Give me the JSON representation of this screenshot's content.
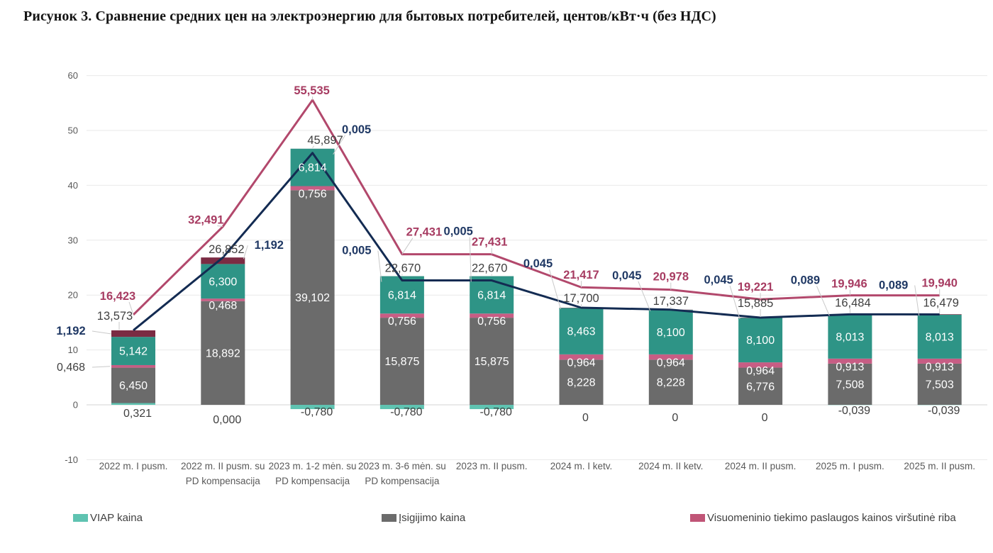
{
  "title": "Рисунок 3. Сравнение средних цен на электроэнергию для бытовых потребителей, центов/кВт·ч (без НДС)",
  "chart_data": {
    "type": "bar",
    "subtype": "stacked-bar-with-lines",
    "title": "Рисунок 3. Сравнение средних цен на электроэнергию для бытовых потребителей, центов/кВт·ч (без НДС)",
    "y_axis": {
      "min": -10,
      "max": 60,
      "ticks": [
        60,
        50,
        40,
        30,
        20,
        10,
        0,
        -10
      ],
      "grid": true
    },
    "categories": [
      "2022 m. I pusm.",
      "2022 m. II pusm. su\nPD kompensacija",
      "2023 m. 1-2 mėn. su\nPD kompensacija",
      "2023 m. 3-6 mėn. su\nPD kompensacija",
      "2023 m. II pusm.",
      "2024 m. I ketv.",
      "2024 m. II ketv.",
      "2024 m. II pusm.",
      "2025 m. I pusm.",
      "2025 m. II pusm."
    ],
    "bar_series": [
      {
        "id": "viap-bottom-segment",
        "legend": "VIAP kaina",
        "color": "#5fc3b1",
        "values": [
          0.321,
          0.0,
          -0.78,
          -0.78,
          -0.78,
          0,
          0,
          0,
          -0.039,
          -0.039
        ],
        "labels": [
          "0,321",
          "0,000",
          "-0,780",
          "-0,780",
          "-0,780",
          "0",
          "0",
          "0",
          "-0,039",
          "-0,039"
        ],
        "label_style": "below-axis-dark",
        "label_color": "#3f3f3f"
      },
      {
        "id": "isigijimo-segment",
        "legend": "Įsigijimo kaina",
        "color": "#6b6b6b",
        "values": [
          6.45,
          18.892,
          39.102,
          15.875,
          15.875,
          8.228,
          8.228,
          6.776,
          7.508,
          7.503
        ],
        "labels": [
          "6,450",
          "18,892",
          "39,102",
          "15,875",
          "15,875",
          "8,228",
          "8,228",
          "6,776",
          "7,508",
          "7,503"
        ],
        "label_style": "inside-white",
        "label_color": "#ffffff"
      },
      {
        "id": "visuomeninio-tiekimo-segment",
        "legend": "Visuomeninio tiekimo paslaugos kainos viršutinė riba",
        "color": "#c75d84",
        "values": [
          0.468,
          0.468,
          0.756,
          0.756,
          0.756,
          0.964,
          0.964,
          0.964,
          0.913,
          0.913
        ],
        "labels": [
          "0,468",
          "0,468",
          "0,756",
          "0,756",
          "0,756",
          "0,964",
          "0,964",
          "0,964",
          "0,913",
          "0,913"
        ],
        "label_style": "inside-white",
        "label_color": "#ffffff"
      },
      {
        "id": "teal-upper-segment",
        "legend": "",
        "color": "#2e9486",
        "values": [
          5.142,
          6.3,
          6.814,
          6.814,
          6.814,
          8.463,
          8.1,
          8.1,
          8.013,
          8.013
        ],
        "labels": [
          "5,142",
          "6,300",
          "6,814",
          "6,814",
          "6,814",
          "8,463",
          "8,100",
          "8,100",
          "8,013",
          "8,013"
        ],
        "label_style": "inside-white",
        "label_color": "#ffffff"
      },
      {
        "id": "dark-red-top-segment",
        "legend": "",
        "color": "#7b2b43",
        "values": [
          1.192,
          1.192,
          0.005,
          0.005,
          0.005,
          0.045,
          0.045,
          0.045,
          0.089,
          0.089
        ],
        "labels": [
          "1,192",
          "1,192",
          "0,005",
          "0,005",
          "0,005",
          "0,045",
          "0,045",
          "0,045",
          "0,089",
          "0,089"
        ],
        "label_style": "outside-navy-bold",
        "label_color": "#1f3864"
      }
    ],
    "totals": {
      "values": [
        13.573,
        26.852,
        45.897,
        22.67,
        22.67,
        17.7,
        17.337,
        15.885,
        16.484,
        16.479
      ],
      "labels": [
        "13,573",
        "26,852",
        "45,897",
        "22,670",
        "22,670",
        "17,700",
        "17,337",
        "15,885",
        "16,484",
        "16,479"
      ],
      "color": "#3f3f3f"
    },
    "lines": [
      {
        "id": "total-price-line",
        "color": "#132b52",
        "values": [
          13.573,
          26.852,
          45.897,
          22.67,
          22.67,
          17.7,
          17.337,
          15.885,
          16.484,
          16.479
        ]
      },
      {
        "id": "upper-bound-line",
        "color": "#b2486c",
        "values": [
          16.423,
          32.491,
          55.535,
          27.431,
          27.431,
          21.417,
          20.978,
          19.221,
          19.946,
          19.94
        ],
        "labels": [
          "16,423",
          "32,491",
          "55,535",
          "27,431",
          "27,431",
          "21,417",
          "20,978",
          "19,221",
          "19,946",
          "19,940"
        ],
        "label_color": "#a73c62"
      }
    ],
    "legend": [
      {
        "label": "VIAP kaina",
        "color": "#5fc3b1"
      },
      {
        "label": "Įsigijimo kaina",
        "color": "#6b6b6b"
      },
      {
        "label": "Visuomeninio tiekimo paslaugos kainos viršutinė riba",
        "color": "#c05577"
      }
    ]
  }
}
